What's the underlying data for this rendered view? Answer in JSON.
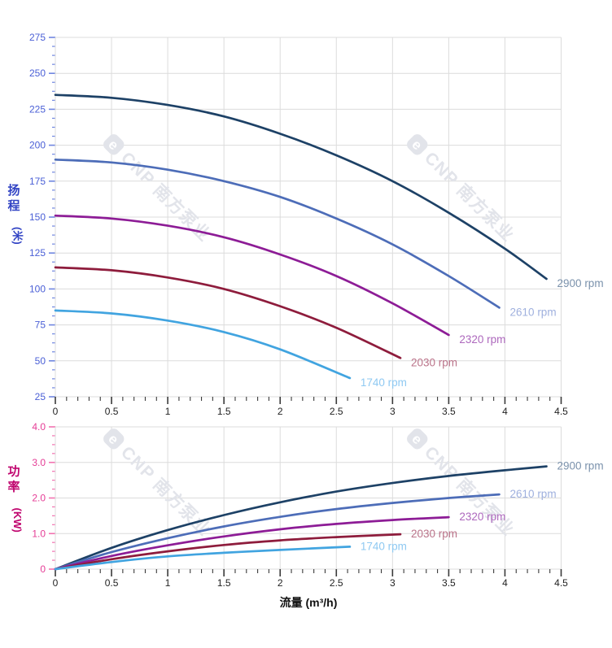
{
  "watermark": {
    "logo_char": "e",
    "text": "CNP 南方泵业",
    "color": "#e2e4ea"
  },
  "chart_data": [
    {
      "type": "line",
      "title": "",
      "xlabel": "",
      "ylabel_main": "扬程",
      "ylabel_unit": "(米)",
      "xlim": [
        0,
        4.5
      ],
      "ylim": [
        25,
        275
      ],
      "grid": true,
      "x_tick_step": 0.5,
      "x_minor_step": 0.1,
      "y_tick_step": 25,
      "y_minor_divisions": 4,
      "x_tick_labels": [
        "0",
        "0.5",
        "1",
        "1.5",
        "2",
        "2.5",
        "3",
        "3.5",
        "4",
        "4.5"
      ],
      "y_tick_labels": [
        "25",
        "50",
        "75",
        "100",
        "125",
        "150",
        "175",
        "200",
        "225",
        "250",
        "275"
      ],
      "axis_tick_color": "#6f86e0",
      "axis_label_color": "#4a5fd6",
      "title_color": "#3244c4",
      "legend_position": "end-of-line",
      "series": [
        {
          "name": "2900 rpm",
          "color": "#1d4166",
          "label_color": "#7b92ac",
          "x": [
            0,
            0.5,
            1,
            1.5,
            2,
            2.5,
            3,
            3.5,
            4,
            4.37
          ],
          "y": [
            235,
            233,
            228,
            220,
            208,
            193,
            175,
            153,
            128,
            107
          ]
        },
        {
          "name": "2610 rpm",
          "color": "#4d6db8",
          "label_color": "#9fb0de",
          "x": [
            0,
            0.5,
            1,
            1.5,
            2,
            2.5,
            3,
            3.5,
            3.95
          ],
          "y": [
            190,
            188,
            183,
            175,
            164,
            149,
            131,
            109,
            87
          ]
        },
        {
          "name": "2320 rpm",
          "color": "#8d1c96",
          "label_color": "#ad68bd",
          "x": [
            0,
            0.5,
            1,
            1.5,
            2,
            2.5,
            3,
            3.5
          ],
          "y": [
            151,
            149,
            144,
            136,
            124,
            109,
            90,
            68
          ]
        },
        {
          "name": "2030 rpm",
          "color": "#8e1c3c",
          "label_color": "#ba7389",
          "x": [
            0,
            0.5,
            1,
            1.5,
            2,
            2.5,
            3.07
          ],
          "y": [
            115,
            113,
            108,
            100,
            88,
            73,
            52
          ]
        },
        {
          "name": "1740 rpm",
          "color": "#41a4e0",
          "label_color": "#8fc9f2",
          "x": [
            0,
            0.5,
            1,
            1.5,
            2,
            2.62
          ],
          "y": [
            85,
            83,
            78,
            70,
            58,
            38
          ]
        }
      ]
    },
    {
      "type": "line",
      "title": "",
      "xlabel": "流量 (m³/h)",
      "ylabel_main": "功率",
      "ylabel_unit": "(KW)",
      "xlim": [
        0,
        4.5
      ],
      "ylim": [
        0,
        4.0
      ],
      "grid": true,
      "x_tick_step": 0.5,
      "x_minor_step": 0.1,
      "y_tick_step": 1.0,
      "y_minor_divisions": 4,
      "x_tick_labels": [
        "0",
        "0.5",
        "1",
        "1.5",
        "2",
        "2.5",
        "3",
        "3.5",
        "4",
        "4.5"
      ],
      "y_tick_labels": [
        "0",
        "1.0",
        "2.0",
        "3.0",
        "4.0"
      ],
      "axis_tick_color": "#f272b0",
      "axis_label_color": "#e53d96",
      "title_color": "#c0056e",
      "legend_position": "end-of-line",
      "series": [
        {
          "name": "2900 rpm",
          "color": "#1d4166",
          "label_color": "#7b92ac",
          "x": [
            0,
            0.5,
            1,
            1.5,
            2,
            2.5,
            3,
            3.5,
            4,
            4.37
          ],
          "y": [
            0,
            0.6,
            1.1,
            1.52,
            1.88,
            2.18,
            2.42,
            2.62,
            2.78,
            2.89
          ]
        },
        {
          "name": "2610 rpm",
          "color": "#4d6db8",
          "label_color": "#9fb0de",
          "x": [
            0,
            0.5,
            1,
            1.5,
            2,
            2.5,
            3,
            3.5,
            3.95
          ],
          "y": [
            0,
            0.48,
            0.87,
            1.2,
            1.47,
            1.69,
            1.86,
            2.0,
            2.1
          ]
        },
        {
          "name": "2320 rpm",
          "color": "#8d1c96",
          "label_color": "#ad68bd",
          "x": [
            0,
            0.5,
            1,
            1.5,
            2,
            2.5,
            3,
            3.5
          ],
          "y": [
            0,
            0.37,
            0.67,
            0.92,
            1.12,
            1.27,
            1.38,
            1.46
          ]
        },
        {
          "name": "2030 rpm",
          "color": "#8e1c3c",
          "label_color": "#ba7389",
          "x": [
            0,
            0.5,
            1,
            1.5,
            2,
            2.5,
            3.07
          ],
          "y": [
            0,
            0.28,
            0.5,
            0.68,
            0.81,
            0.9,
            0.98
          ]
        },
        {
          "name": "1740 rpm",
          "color": "#41a4e0",
          "label_color": "#8fc9f2",
          "x": [
            0,
            0.5,
            1,
            1.5,
            2,
            2.62
          ],
          "y": [
            0,
            0.2,
            0.36,
            0.46,
            0.54,
            0.63
          ]
        }
      ]
    }
  ]
}
